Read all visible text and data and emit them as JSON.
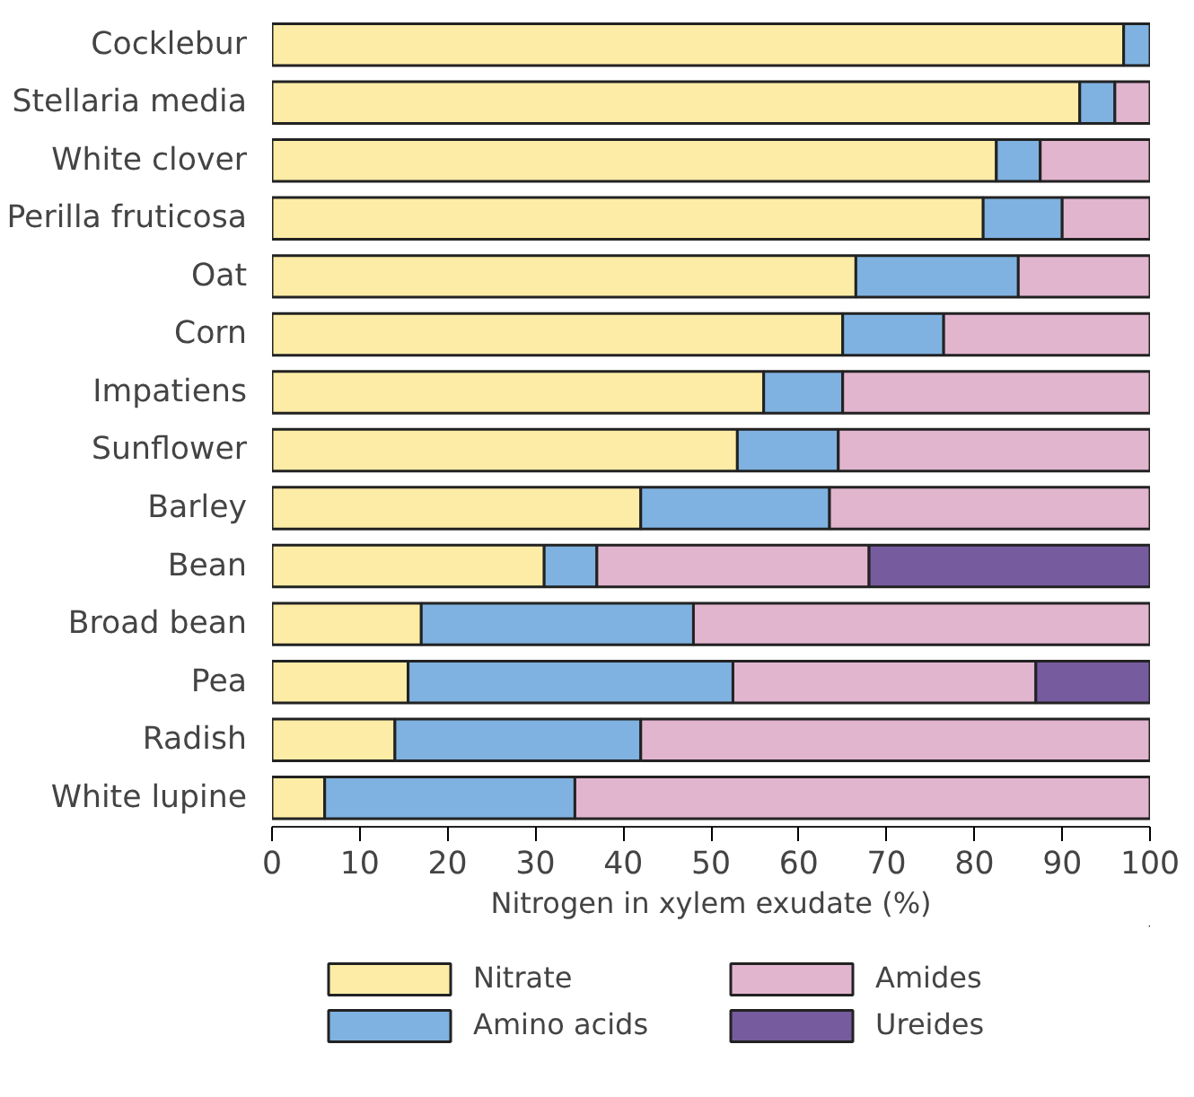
{
  "chart_data": {
    "type": "bar",
    "orientation": "horizontal",
    "stacked": true,
    "xlabel": "Nitrogen in xylem exudate (%)",
    "categories": [
      "Cocklebur",
      "Stellaria media",
      "White clover",
      "Perilla fruticosa",
      "Oat",
      "Corn",
      "Impatiens",
      "Sunflower",
      "Barley",
      "Bean",
      "Broad bean",
      "Pea",
      "Radish",
      "White lupine"
    ],
    "series": [
      {
        "name": "Nitrate",
        "color": "#fdeca6",
        "values": [
          97,
          92,
          82.5,
          81,
          66.5,
          65,
          56,
          53,
          42,
          31,
          17,
          15.5,
          14,
          6
        ]
      },
      {
        "name": "Amino acids",
        "color": "#7fb2e0",
        "values": [
          3,
          4,
          5,
          9,
          18.5,
          11.5,
          9,
          11.5,
          21.5,
          6,
          31,
          37,
          28,
          28.5
        ]
      },
      {
        "name": "Amides",
        "color": "#e2b5cf",
        "values": [
          0,
          4,
          12.5,
          10,
          15,
          23.5,
          35,
          35.5,
          36.5,
          31,
          52,
          34.5,
          58,
          65.5
        ]
      },
      {
        "name": "Ureides",
        "color": "#775b9f",
        "values": [
          0,
          0,
          0,
          0,
          0,
          0,
          0,
          0,
          0,
          32,
          0,
          13,
          0,
          0
        ]
      }
    ],
    "xlim": [
      0,
      100
    ],
    "xticks": [
      0,
      10,
      20,
      30,
      40,
      50,
      60,
      70,
      80,
      90,
      100
    ],
    "grid": false,
    "legend": "bottom"
  }
}
